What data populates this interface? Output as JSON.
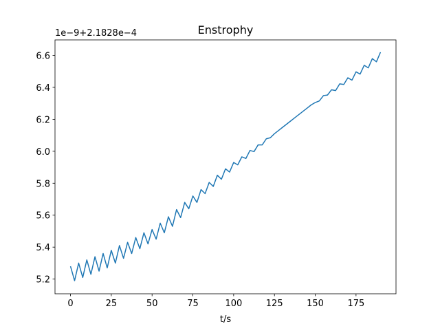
{
  "chart_data": {
    "type": "line",
    "title": "Enstrophy",
    "xlabel": "t/s",
    "offset_text": "1e−9+2.1828e−4",
    "x": [
      0,
      2.5,
      5,
      7.5,
      10,
      12.5,
      15,
      17.5,
      20,
      22.5,
      25,
      27.5,
      30,
      32.5,
      35,
      37.5,
      40,
      42.5,
      45,
      47.5,
      50,
      52.5,
      55,
      57.5,
      60,
      62.5,
      65,
      67.5,
      70,
      72.5,
      75,
      77.5,
      80,
      82.5,
      85,
      87.5,
      90,
      92.5,
      95,
      97.5,
      100,
      102.5,
      105,
      107.5,
      110,
      112.5,
      115,
      117.5,
      120,
      122.5,
      125,
      127.5,
      130,
      132.5,
      135,
      137.5,
      140,
      142.5,
      145,
      147.5,
      150,
      152.5,
      155,
      157.5,
      160,
      162.5,
      165,
      167.5,
      170,
      172.5,
      175,
      177.5,
      180,
      182.5,
      185,
      187.5,
      190
    ],
    "series": [
      {
        "name": "enstrophy",
        "color": "#1f77b4",
        "values": [
          5.28,
          5.19,
          5.3,
          5.21,
          5.32,
          5.23,
          5.34,
          5.25,
          5.36,
          5.27,
          5.38,
          5.3,
          5.41,
          5.33,
          5.43,
          5.36,
          5.46,
          5.39,
          5.49,
          5.42,
          5.51,
          5.45,
          5.55,
          5.49,
          5.59,
          5.53,
          5.635,
          5.585,
          5.68,
          5.64,
          5.72,
          5.68,
          5.76,
          5.735,
          5.805,
          5.78,
          5.85,
          5.825,
          5.89,
          5.87,
          5.93,
          5.915,
          5.965,
          5.955,
          6.005,
          5.998,
          6.04,
          6.04,
          6.078,
          6.085,
          6.11,
          6.13,
          6.15,
          6.17,
          6.19,
          6.21,
          6.23,
          6.25,
          6.27,
          6.29,
          6.305,
          6.315,
          6.348,
          6.352,
          6.385,
          6.38,
          6.422,
          6.418,
          6.46,
          6.445,
          6.497,
          6.483,
          6.538,
          6.522,
          6.58,
          6.56,
          6.62
        ]
      }
    ],
    "xlim": [
      -9.5,
      199.5
    ],
    "ylim": [
      5.108,
      6.697
    ],
    "xticks": [
      0,
      25,
      50,
      75,
      100,
      125,
      150,
      175
    ],
    "yticks": [
      5.2,
      5.4,
      5.6,
      5.8,
      {
        "value": 6,
        "label": "6.0"
      },
      6.2,
      6.4,
      6.6
    ]
  }
}
